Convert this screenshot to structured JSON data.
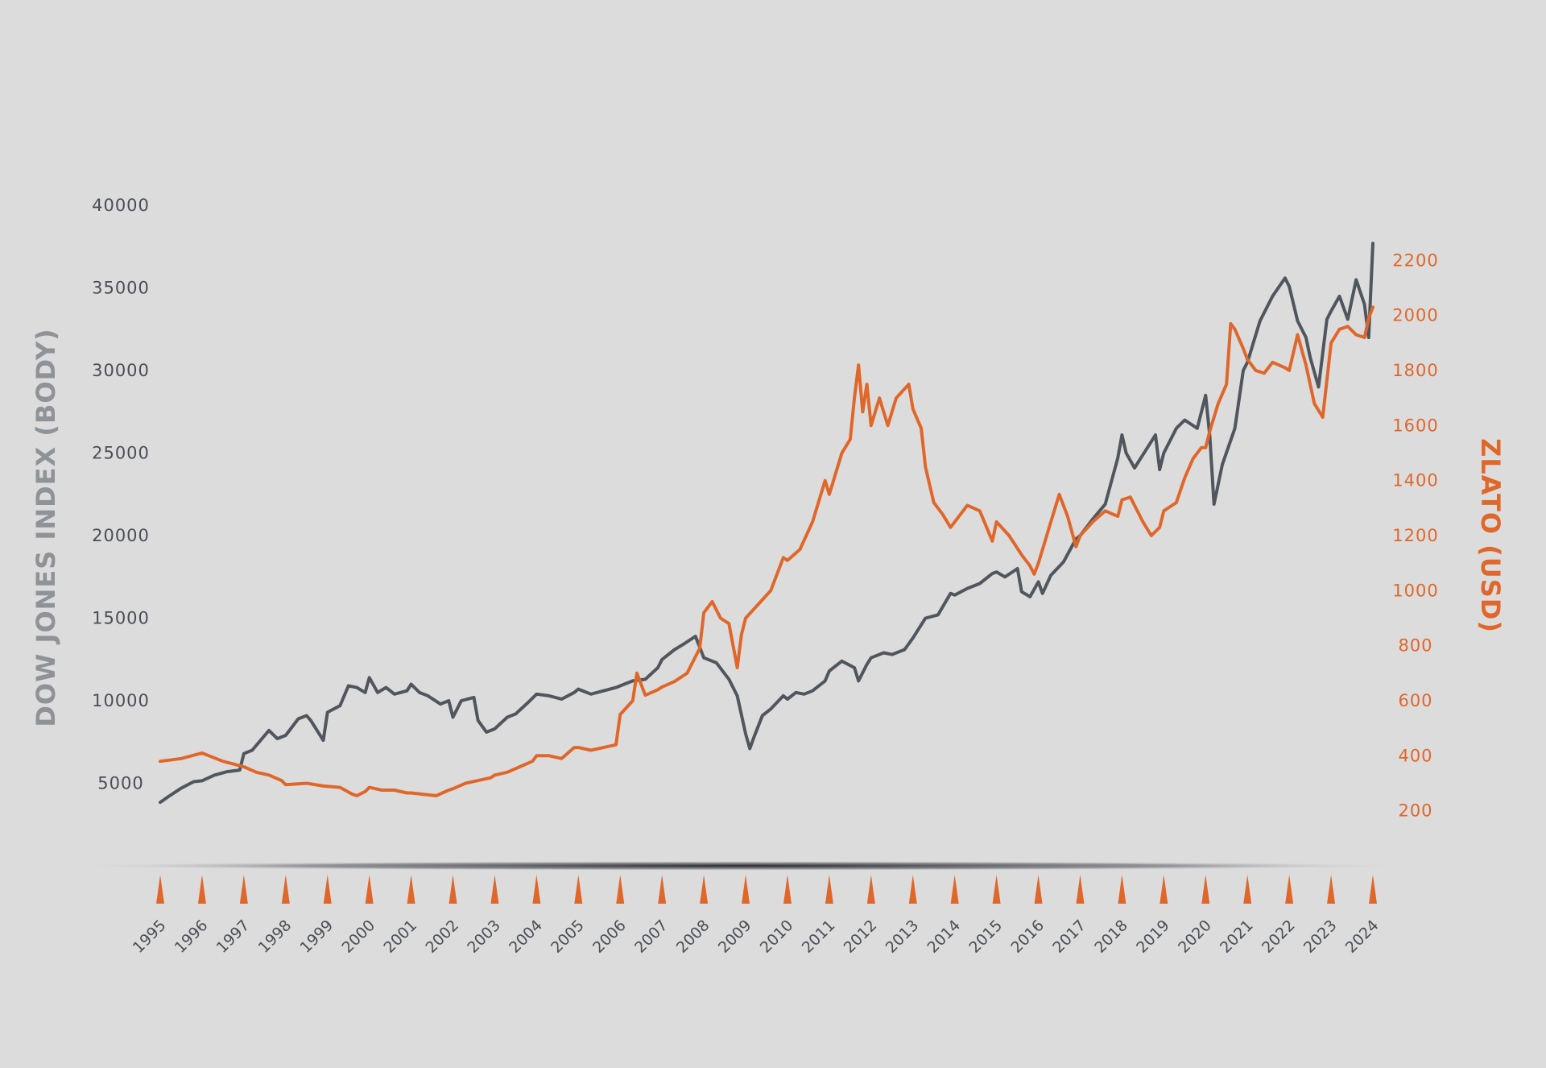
{
  "colors": {
    "background": "#dcdcdd",
    "dow": "#50565d",
    "gold": "#e0672a",
    "left_axis_title": "#8f9397",
    "left_ticks": "#4a4f55",
    "right_ticks": "#e0672a",
    "year_markers": "#e0672a"
  },
  "chart_data": {
    "type": "line",
    "title": "",
    "x_range": [
      1995.0,
      2024.0
    ],
    "left_axis": {
      "label": "DOW JONES INDEX (BODY)",
      "ylim": [
        0,
        40000
      ],
      "ticks": [
        "5000",
        "10000",
        "15000",
        "20000",
        "25000",
        "30000",
        "35000",
        "40000"
      ],
      "tick_values": [
        5000,
        10000,
        15000,
        20000,
        25000,
        30000,
        35000,
        40000
      ]
    },
    "right_axis": {
      "label": "ZLATO (USD)",
      "ylim": [
        0,
        2400
      ],
      "ticks": [
        "200",
        "400",
        "600",
        "800",
        "1000",
        "1200",
        "1400",
        "1600",
        "1800",
        "2000",
        "2200"
      ],
      "tick_values": [
        200,
        400,
        600,
        800,
        1000,
        1200,
        1400,
        1600,
        1800,
        2000,
        2200
      ]
    },
    "x_ticks": [
      "1995",
      "1996",
      "1997",
      "1998",
      "1999",
      "2000",
      "2001",
      "2002",
      "2003",
      "2004",
      "2005",
      "2006",
      "2007",
      "2008",
      "2009",
      "2010",
      "2011",
      "2012",
      "2013",
      "2014",
      "2015",
      "2016",
      "2017",
      "2018",
      "2019",
      "2020",
      "2021",
      "2022",
      "2023",
      "2024"
    ],
    "series": [
      {
        "name": "Dow Jones",
        "axis": "left",
        "x": [
          1995.0,
          1995.2,
          1995.5,
          1995.8,
          1996.0,
          1996.3,
          1996.6,
          1996.9,
          1997.0,
          1997.2,
          1997.5,
          1997.6,
          1997.8,
          1998.0,
          1998.3,
          1998.5,
          1998.6,
          1998.9,
          1999.0,
          1999.3,
          1999.5,
          1999.7,
          1999.9,
          2000.0,
          2000.2,
          2000.4,
          2000.6,
          2000.9,
          2001.0,
          2001.2,
          2001.4,
          2001.7,
          2001.9,
          2002.0,
          2002.2,
          2002.5,
          2002.6,
          2002.8,
          2003.0,
          2003.3,
          2003.5,
          2003.8,
          2004.0,
          2004.3,
          2004.6,
          2004.9,
          2005.0,
          2005.3,
          2005.6,
          2005.9,
          2006.0,
          2006.3,
          2006.6,
          2006.9,
          2007.0,
          2007.3,
          2007.5,
          2007.8,
          2008.0,
          2008.3,
          2008.6,
          2008.8,
          2009.0,
          2009.1,
          2009.2,
          2009.4,
          2009.6,
          2009.9,
          2010.0,
          2010.2,
          2010.4,
          2010.6,
          2010.9,
          2011.0,
          2011.3,
          2011.6,
          2011.7,
          2011.9,
          2012.0,
          2012.3,
          2012.5,
          2012.8,
          2013.0,
          2013.3,
          2013.6,
          2013.9,
          2014.0,
          2014.3,
          2014.6,
          2014.9,
          2015.0,
          2015.2,
          2015.5,
          2015.6,
          2015.8,
          2016.0,
          2016.1,
          2016.3,
          2016.6,
          2016.9,
          2017.0,
          2017.3,
          2017.6,
          2017.9,
          2018.0,
          2018.1,
          2018.3,
          2018.6,
          2018.8,
          2018.9,
          2019.0,
          2019.3,
          2019.5,
          2019.8,
          2020.0,
          2020.1,
          2020.2,
          2020.4,
          2020.7,
          2020.9,
          2021.0,
          2021.3,
          2021.6,
          2021.9,
          2022.0,
          2022.2,
          2022.4,
          2022.5,
          2022.7,
          2022.9,
          2023.0,
          2023.2,
          2023.4,
          2023.6,
          2023.8,
          2023.9,
          2024.0
        ],
        "values": [
          3850,
          4200,
          4700,
          5100,
          5150,
          5500,
          5700,
          5800,
          6800,
          7000,
          7900,
          8200,
          7700,
          7900,
          8900,
          9100,
          8800,
          7600,
          9300,
          9700,
          10900,
          10800,
          10500,
          11400,
          10500,
          10800,
          10400,
          10600,
          11000,
          10500,
          10300,
          9800,
          10000,
          9000,
          10000,
          10200,
          8800,
          8100,
          8300,
          9000,
          9200,
          9900,
          10400,
          10300,
          10100,
          10500,
          10700,
          10400,
          10600,
          10800,
          10900,
          11200,
          11300,
          12000,
          12500,
          13100,
          13400,
          13900,
          12600,
          12300,
          11300,
          10300,
          8000,
          7100,
          7800,
          9100,
          9500,
          10300,
          10100,
          10500,
          10400,
          10600,
          11200,
          11800,
          12400,
          12000,
          11200,
          12200,
          12600,
          12900,
          12800,
          13100,
          13800,
          15000,
          15200,
          16500,
          16400,
          16800,
          17100,
          17700,
          17800,
          17500,
          18000,
          16600,
          16300,
          17200,
          16500,
          17600,
          18400,
          19800,
          20000,
          21000,
          21900,
          24700,
          26100,
          25000,
          24100,
          25300,
          26100,
          24000,
          25000,
          26500,
          27000,
          26500,
          28500,
          26000,
          21900,
          24300,
          26500,
          30000,
          30500,
          33000,
          34500,
          35600,
          35100,
          33000,
          32000,
          30800,
          29000,
          33100,
          33600,
          34500,
          33100,
          35500,
          34000,
          32000,
          37700
        ]
      },
      {
        "name": "Zlato",
        "axis": "right",
        "x": [
          1995.0,
          1995.5,
          1996.0,
          1996.5,
          1997.0,
          1997.3,
          1997.6,
          1997.9,
          1998.0,
          1998.5,
          1998.9,
          1999.3,
          1999.6,
          1999.7,
          1999.9,
          2000.0,
          2000.3,
          2000.6,
          2000.9,
          2001.0,
          2001.3,
          2001.6,
          2001.9,
          2002.0,
          2002.3,
          2002.6,
          2002.9,
          2003.0,
          2003.3,
          2003.6,
          2003.9,
          2004.0,
          2004.3,
          2004.6,
          2004.9,
          2005.0,
          2005.3,
          2005.6,
          2005.9,
          2006.0,
          2006.3,
          2006.4,
          2006.6,
          2006.9,
          2007.0,
          2007.3,
          2007.6,
          2007.9,
          2008.0,
          2008.2,
          2008.4,
          2008.6,
          2008.8,
          2008.9,
          2009.0,
          2009.3,
          2009.6,
          2009.9,
          2010.0,
          2010.3,
          2010.6,
          2010.9,
          2011.0,
          2011.3,
          2011.5,
          2011.6,
          2011.7,
          2011.8,
          2011.9,
          2012.0,
          2012.2,
          2012.4,
          2012.6,
          2012.9,
          2013.0,
          2013.2,
          2013.3,
          2013.5,
          2013.7,
          2013.9,
          2014.0,
          2014.3,
          2014.6,
          2014.9,
          2015.0,
          2015.3,
          2015.6,
          2015.8,
          2015.9,
          2016.0,
          2016.3,
          2016.5,
          2016.7,
          2016.9,
          2017.0,
          2017.3,
          2017.6,
          2017.9,
          2018.0,
          2018.2,
          2018.5,
          2018.7,
          2018.9,
          2019.0,
          2019.3,
          2019.5,
          2019.7,
          2019.9,
          2020.0,
          2020.1,
          2020.3,
          2020.5,
          2020.6,
          2020.7,
          2020.9,
          2021.0,
          2021.2,
          2021.4,
          2021.6,
          2021.9,
          2022.0,
          2022.2,
          2022.4,
          2022.6,
          2022.8,
          2023.0,
          2023.2,
          2023.4,
          2023.6,
          2023.8,
          2023.9,
          2024.0
        ],
        "values": [
          380,
          390,
          410,
          380,
          360,
          340,
          330,
          310,
          295,
          300,
          290,
          285,
          260,
          255,
          270,
          285,
          275,
          275,
          265,
          265,
          260,
          255,
          275,
          280,
          300,
          310,
          320,
          330,
          340,
          360,
          380,
          400,
          400,
          390,
          430,
          430,
          420,
          430,
          440,
          550,
          600,
          700,
          620,
          640,
          650,
          670,
          700,
          790,
          920,
          960,
          900,
          880,
          720,
          840,
          900,
          950,
          1000,
          1120,
          1110,
          1150,
          1250,
          1400,
          1350,
          1500,
          1550,
          1700,
          1820,
          1650,
          1750,
          1600,
          1700,
          1600,
          1700,
          1750,
          1660,
          1590,
          1450,
          1320,
          1280,
          1230,
          1250,
          1310,
          1290,
          1180,
          1250,
          1200,
          1130,
          1090,
          1060,
          1100,
          1250,
          1350,
          1270,
          1160,
          1200,
          1250,
          1290,
          1270,
          1330,
          1340,
          1250,
          1200,
          1230,
          1290,
          1320,
          1410,
          1480,
          1520,
          1520,
          1580,
          1680,
          1750,
          1970,
          1950,
          1880,
          1840,
          1800,
          1790,
          1830,
          1810,
          1800,
          1930,
          1820,
          1680,
          1630,
          1900,
          1950,
          1960,
          1930,
          1920,
          1990,
          2030
        ]
      }
    ]
  }
}
